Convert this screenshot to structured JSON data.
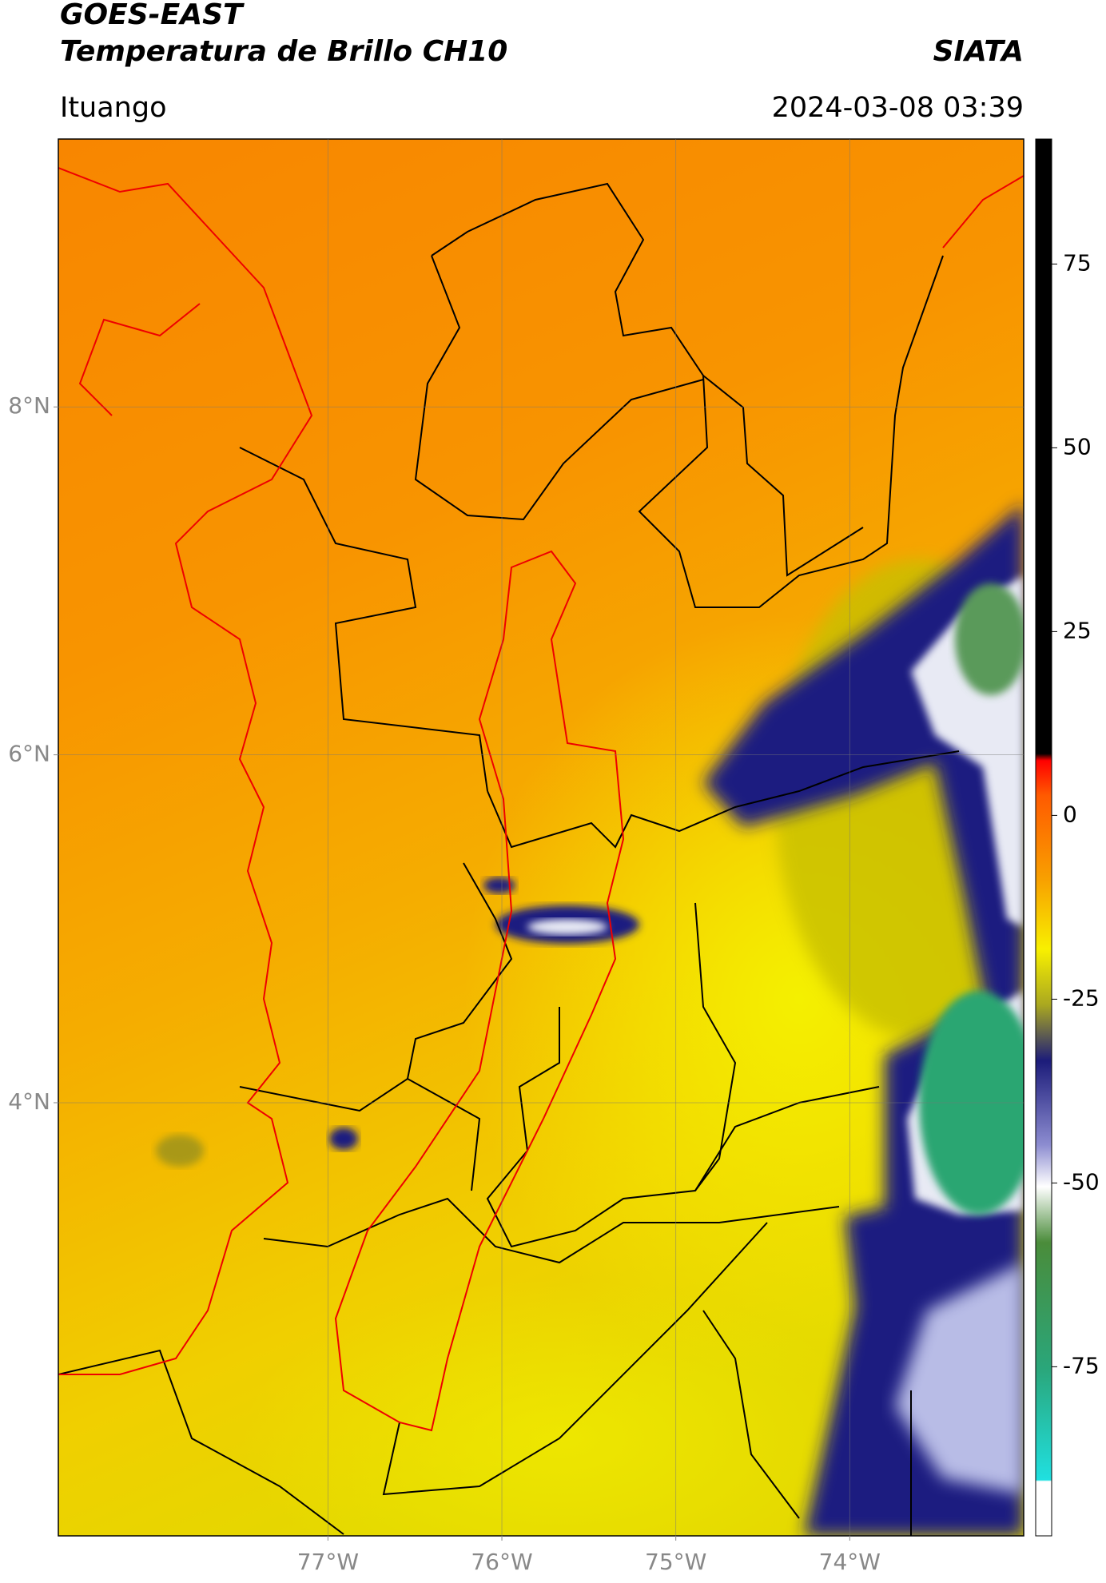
{
  "header": {
    "title": "GOES-EAST",
    "subtitle": "Temperatura de Brillo CH10",
    "source": "SIATA",
    "location": "Ituango",
    "datetime": "2024-03-08 03:39"
  },
  "chart_data": {
    "type": "map",
    "xlim": [
      -78.55,
      -73.0
    ],
    "ylim": [
      1.51,
      9.54
    ],
    "xticks": [
      {
        "value": -77,
        "label": "77°W"
      },
      {
        "value": -76,
        "label": "76°W"
      },
      {
        "value": -75,
        "label": "75°W"
      },
      {
        "value": -74,
        "label": "74°W"
      }
    ],
    "yticks": [
      {
        "value": 8,
        "label": "8°N"
      },
      {
        "value": 6,
        "label": "6°N"
      },
      {
        "value": 4,
        "label": "4°N"
      }
    ],
    "grid": true,
    "colorbar": {
      "lim": [
        -98,
        92
      ],
      "ticks": [
        75,
        50,
        25,
        0,
        -25,
        -50,
        -75
      ]
    }
  }
}
